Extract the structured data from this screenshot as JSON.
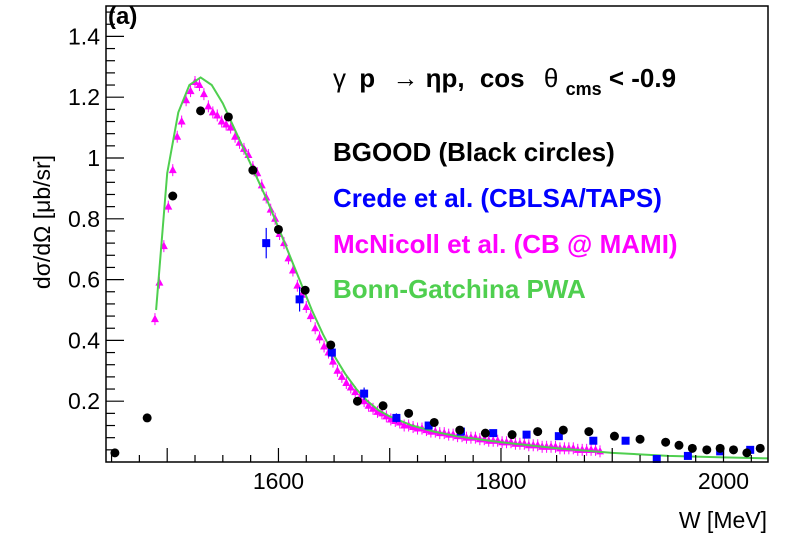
{
  "chart_data": {
    "type": "scatter",
    "panel_label": "(a)",
    "title": "γ p →ηp, cos θcms< -0.9",
    "title_parts": {
      "gamma": "γ",
      "p": "p",
      "arrow": "→",
      "eta_p": "ηp,",
      "cos": "cos",
      "theta": "θ",
      "sub": "cms",
      "cut": "< -0.9"
    },
    "xlabel": "W [MeV]",
    "ylabel": "dσ/dΩ [μb/sr]",
    "xlim": [
      1445,
      2040
    ],
    "ylim": [
      0,
      1.5
    ],
    "x_ticks": [
      1600,
      1800,
      2000
    ],
    "y_ticks": [
      0.2,
      0.4,
      0.6,
      0.8,
      1,
      1.2,
      1.4
    ],
    "grid": false,
    "colors": {
      "bgood": "#000000",
      "crede": "#0000ff",
      "mcnicoll": "#ff00ff",
      "bnga": "#4fcf4f",
      "axis": "#000000"
    },
    "legend": [
      {
        "label": "BGOOD (Black circles)",
        "color": "#000000"
      },
      {
        "label": "Crede et al. (CBLSA/TAPS)",
        "color": "#0000ff"
      },
      {
        "label": "McNicoll et al. (CB @ MAMI)",
        "color": "#ff00ff"
      },
      {
        "label": "Bonn-Gatchina PWA",
        "color": "#4fcf4f"
      }
    ],
    "series": [
      {
        "name": "BGOOD",
        "marker": "circle",
        "color": "#000000",
        "x": [
          1453,
          1482,
          1505,
          1530,
          1555,
          1577,
          1600,
          1624,
          1647,
          1671,
          1694,
          1717,
          1740,
          1763,
          1786,
          1810,
          1833,
          1856,
          1879,
          1902,
          1925,
          1948,
          1960,
          1972,
          1985,
          1997,
          2009,
          2021,
          2033
        ],
        "y": [
          0.03,
          0.145,
          0.875,
          1.155,
          1.135,
          0.96,
          0.765,
          0.565,
          0.385,
          0.2,
          0.185,
          0.16,
          0.13,
          0.105,
          0.095,
          0.09,
          0.1,
          0.105,
          0.1,
          0.085,
          0.075,
          0.065,
          0.055,
          0.045,
          0.04,
          0.045,
          0.04,
          0.03,
          0.045
        ]
      },
      {
        "name": "Crede et al.",
        "marker": "square",
        "color": "#0000ff",
        "x": [
          1589,
          1619,
          1648,
          1677,
          1706,
          1735,
          1764,
          1793,
          1823,
          1852,
          1883,
          1912,
          1940,
          1968,
          1997,
          2024
        ],
        "y": [
          0.72,
          0.535,
          0.36,
          0.225,
          0.145,
          0.12,
          0.1,
          0.095,
          0.09,
          0.085,
          0.07,
          0.07,
          0.01,
          0.02,
          0.035,
          0.04
        ],
        "err": [
          0.05,
          0.04,
          0.025,
          0.02,
          0.015,
          0.012,
          0.012,
          0.012,
          0.012,
          0.012,
          0.012,
          0.012,
          0.012,
          0.012,
          0.012,
          0.012
        ]
      },
      {
        "name": "McNicoll et al.",
        "marker": "triangle",
        "color": "#ff00ff",
        "x": [
          1489,
          1493,
          1497,
          1501,
          1505,
          1509,
          1513,
          1517,
          1521,
          1525,
          1529,
          1533,
          1537,
          1541,
          1545,
          1549,
          1553,
          1557,
          1561,
          1565,
          1569,
          1573,
          1577,
          1581,
          1585,
          1589,
          1593,
          1597,
          1601,
          1605,
          1609,
          1613,
          1617,
          1621,
          1625,
          1629,
          1633,
          1637,
          1641,
          1645,
          1649,
          1653,
          1657,
          1661,
          1665,
          1669,
          1673,
          1677,
          1681,
          1685,
          1689,
          1693,
          1697,
          1701,
          1705,
          1709,
          1713,
          1717,
          1721,
          1725,
          1729,
          1733,
          1737,
          1741,
          1745,
          1749,
          1753,
          1757,
          1761,
          1765,
          1769,
          1773,
          1777,
          1781,
          1785,
          1789,
          1793,
          1797,
          1801,
          1805,
          1809,
          1813,
          1817,
          1821,
          1825,
          1829,
          1833,
          1837,
          1841,
          1845,
          1849,
          1853,
          1857,
          1861,
          1865,
          1869,
          1873,
          1877,
          1881,
          1885,
          1889
        ],
        "y": [
          0.47,
          0.59,
          0.71,
          0.84,
          0.96,
          1.07,
          1.12,
          1.19,
          1.22,
          1.25,
          1.24,
          1.21,
          1.17,
          1.15,
          1.14,
          1.12,
          1.11,
          1.1,
          1.07,
          1.05,
          1.03,
          1.01,
          0.97,
          0.95,
          0.91,
          0.87,
          0.83,
          0.8,
          0.75,
          0.72,
          0.67,
          0.63,
          0.58,
          0.55,
          0.51,
          0.48,
          0.44,
          0.41,
          0.38,
          0.36,
          0.33,
          0.3,
          0.28,
          0.26,
          0.245,
          0.23,
          0.21,
          0.2,
          0.185,
          0.175,
          0.165,
          0.16,
          0.15,
          0.14,
          0.135,
          0.13,
          0.12,
          0.12,
          0.115,
          0.11,
          0.11,
          0.105,
          0.1,
          0.1,
          0.095,
          0.095,
          0.09,
          0.09,
          0.085,
          0.085,
          0.08,
          0.08,
          0.08,
          0.075,
          0.075,
          0.07,
          0.07,
          0.07,
          0.065,
          0.065,
          0.065,
          0.06,
          0.06,
          0.06,
          0.055,
          0.055,
          0.055,
          0.05,
          0.05,
          0.05,
          0.05,
          0.045,
          0.045,
          0.045,
          0.045,
          0.04,
          0.04,
          0.04,
          0.04,
          0.04,
          0.035
        ]
      },
      {
        "name": "Bonn-Gatchina PWA",
        "marker": "line",
        "color": "#4fcf4f",
        "x": [
          1490,
          1500,
          1510,
          1520,
          1530,
          1540,
          1550,
          1560,
          1570,
          1580,
          1590,
          1600,
          1610,
          1620,
          1630,
          1640,
          1650,
          1660,
          1670,
          1680,
          1690,
          1700,
          1720,
          1740,
          1760,
          1780,
          1800,
          1850,
          1900,
          1950,
          2000,
          2040
        ],
        "y": [
          0.5,
          0.95,
          1.15,
          1.24,
          1.265,
          1.24,
          1.18,
          1.1,
          1.02,
          0.94,
          0.86,
          0.77,
          0.68,
          0.59,
          0.5,
          0.42,
          0.35,
          0.29,
          0.24,
          0.2,
          0.17,
          0.15,
          0.12,
          0.1,
          0.085,
          0.075,
          0.065,
          0.045,
          0.03,
          0.02,
          0.015,
          0.012
        ]
      }
    ]
  }
}
